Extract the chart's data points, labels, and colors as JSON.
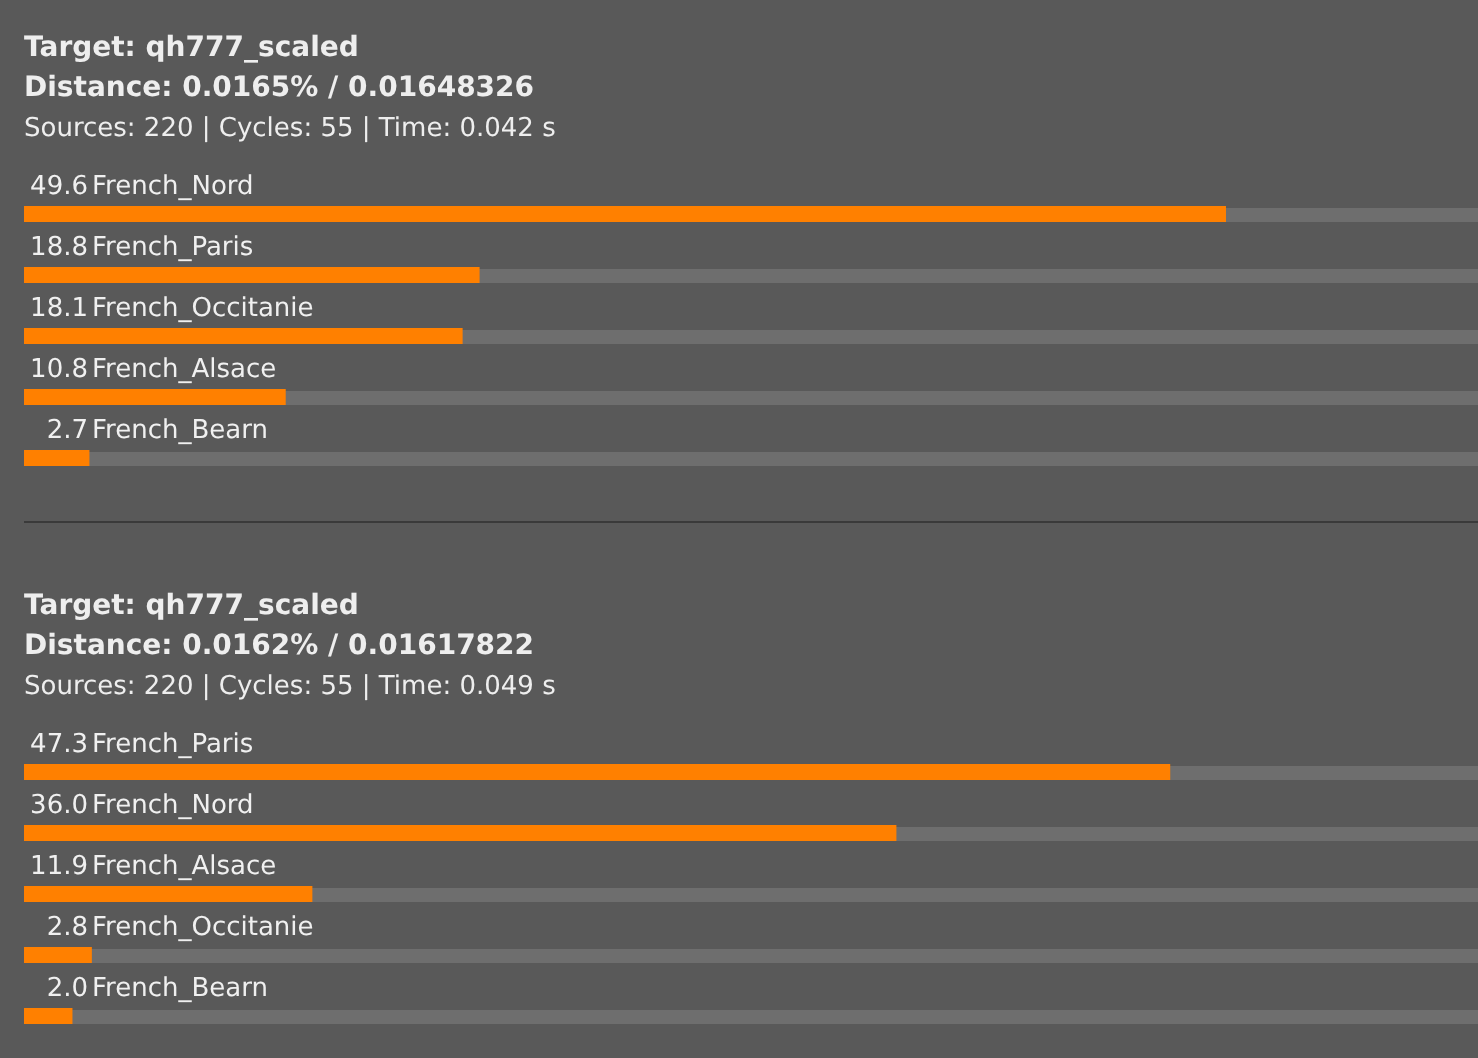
{
  "chart_data": [
    {
      "type": "bar",
      "orientation": "horizontal",
      "title": "Target: qh777_scaled",
      "subtitle": "Distance: 0.0165% / 0.01648326",
      "annotations": [
        "Sources: 220 | Cycles: 55 | Time: 0.042 s"
      ],
      "categories": [
        "French_Nord",
        "French_Paris",
        "French_Occitanie",
        "French_Alsace",
        "French_Bearn"
      ],
      "values": [
        49.6,
        18.8,
        18.1,
        10.8,
        2.7
      ],
      "value_labels": [
        "49.6",
        "18.8",
        "18.1",
        "10.8",
        "2.7"
      ],
      "color": "#ff8000",
      "xlim": [
        0,
        60
      ],
      "tick_labels": false
    },
    {
      "type": "bar",
      "orientation": "horizontal",
      "title": "Target: qh777_scaled",
      "subtitle": "Distance: 0.0162% / 0.01617822",
      "annotations": [
        "Sources: 220 | Cycles: 55 | Time: 0.049 s"
      ],
      "categories": [
        "French_Paris",
        "French_Nord",
        "French_Alsace",
        "French_Occitanie",
        "French_Bearn"
      ],
      "values": [
        47.3,
        36.0,
        11.9,
        2.8,
        2.0
      ],
      "value_labels": [
        "47.3",
        "36.0",
        "11.9",
        "2.8",
        "2.0"
      ],
      "color": "#ff8000",
      "xlim": [
        0,
        60
      ],
      "tick_labels": false
    }
  ]
}
